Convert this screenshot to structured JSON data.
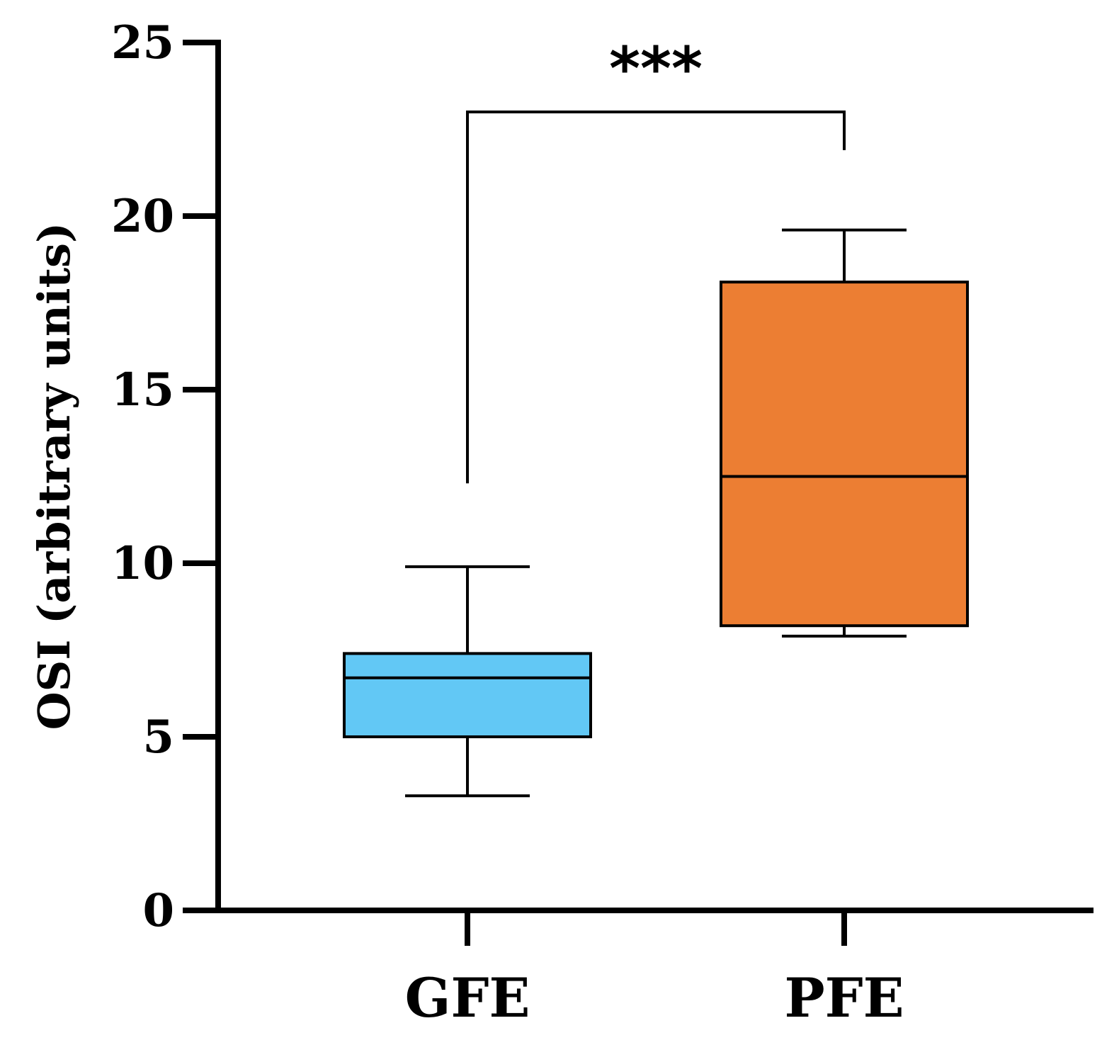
{
  "chart_data": {
    "type": "box",
    "title": "",
    "xlabel": "",
    "ylabel": "OSI (arbitrary units)",
    "ylim": [
      0,
      25
    ],
    "yticks": [
      0,
      5,
      10,
      15,
      20,
      25
    ],
    "ytick_labels": [
      "0",
      "5",
      "10",
      "15",
      "20",
      "25"
    ],
    "grid": false,
    "categories": [
      "GFE",
      "PFE"
    ],
    "boxes": [
      {
        "name": "GFE",
        "min": 3.3,
        "q1": 5.0,
        "median": 6.7,
        "q3": 7.4,
        "max": 9.9,
        "color": "#62C8F5"
      },
      {
        "name": "PFE",
        "min": 7.9,
        "q1": 8.2,
        "median": 12.5,
        "q3": 18.1,
        "max": 19.6,
        "color": "#EC7E33"
      }
    ],
    "annotations": [
      {
        "type": "significance",
        "label": "***",
        "from": "GFE",
        "to": "PFE",
        "level": 23.0,
        "left_end": 12.3,
        "right_end": 21.9
      }
    ],
    "line_color": "#000000"
  }
}
